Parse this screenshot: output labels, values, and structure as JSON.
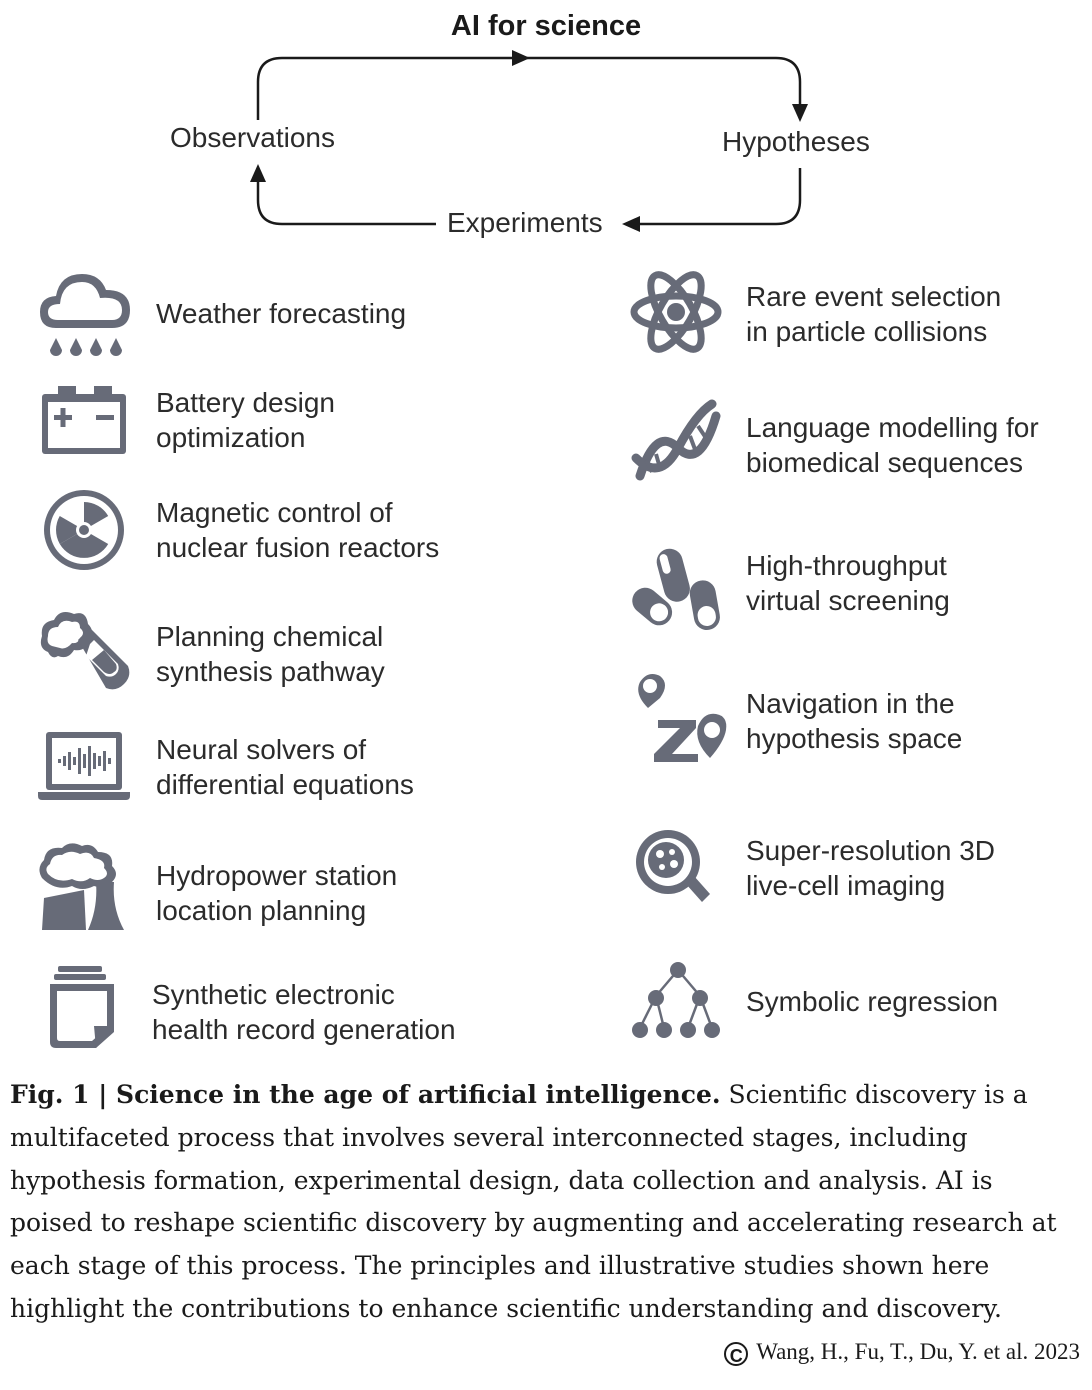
{
  "cycle": {
    "title": "AI for science",
    "nodes": {
      "observations": "Observations",
      "hypotheses": "Hypotheses",
      "experiments": "Experiments"
    }
  },
  "left_items": [
    {
      "icon": "cloud-rain-icon",
      "lines": [
        "Weather forecasting"
      ]
    },
    {
      "icon": "battery-icon",
      "lines": [
        "Battery design",
        "optimization"
      ]
    },
    {
      "icon": "radiation-icon",
      "lines": [
        "Magnetic control of",
        "nuclear fusion reactors"
      ]
    },
    {
      "icon": "test-tube-icon",
      "lines": [
        "Planning chemical",
        "synthesis pathway"
      ]
    },
    {
      "icon": "laptop-waveform-icon",
      "lines": [
        "Neural solvers of",
        "differential equations"
      ]
    },
    {
      "icon": "power-plant-icon",
      "lines": [
        "Hydropower station",
        "location planning"
      ]
    },
    {
      "icon": "document-stack-icon",
      "lines": [
        "Synthetic electronic",
        "health record generation"
      ]
    }
  ],
  "right_items": [
    {
      "icon": "atom-icon",
      "lines": [
        "Rare event selection",
        "in particle collisions"
      ]
    },
    {
      "icon": "dna-icon",
      "lines": [
        "Language modelling for",
        "biomedical sequences"
      ]
    },
    {
      "icon": "capsules-icon",
      "lines": [
        "High-throughput",
        "virtual screening"
      ]
    },
    {
      "icon": "a-to-b-navigation-icon",
      "lines": [
        "Navigation in the",
        "hypothesis space"
      ]
    },
    {
      "icon": "magnifier-cell-icon",
      "lines": [
        "Super-resolution 3D",
        "live-cell imaging"
      ]
    },
    {
      "icon": "tree-graph-icon",
      "lines": [
        "Symbolic regression"
      ]
    }
  ],
  "caption": {
    "bold": "Fig. 1 | Science in the age of artificial intelligence.",
    "text": " Scientific discovery is a multifaceted process that involves several interconnected stages, including hypothesis formation, experimental design, data collection and analysis. AI is poised to reshape scientific discovery by augmenting and accelerating research at each stage of this process. The principles and illustrative studies shown here highlight the contributions to enhance scientific understanding and discovery."
  },
  "credit": {
    "symbol": "C",
    "text": "Wang, H., Fu, T., Du, Y. et al. 2023"
  },
  "colors": {
    "icon": "#676b78",
    "text": "#2b2b2b"
  }
}
